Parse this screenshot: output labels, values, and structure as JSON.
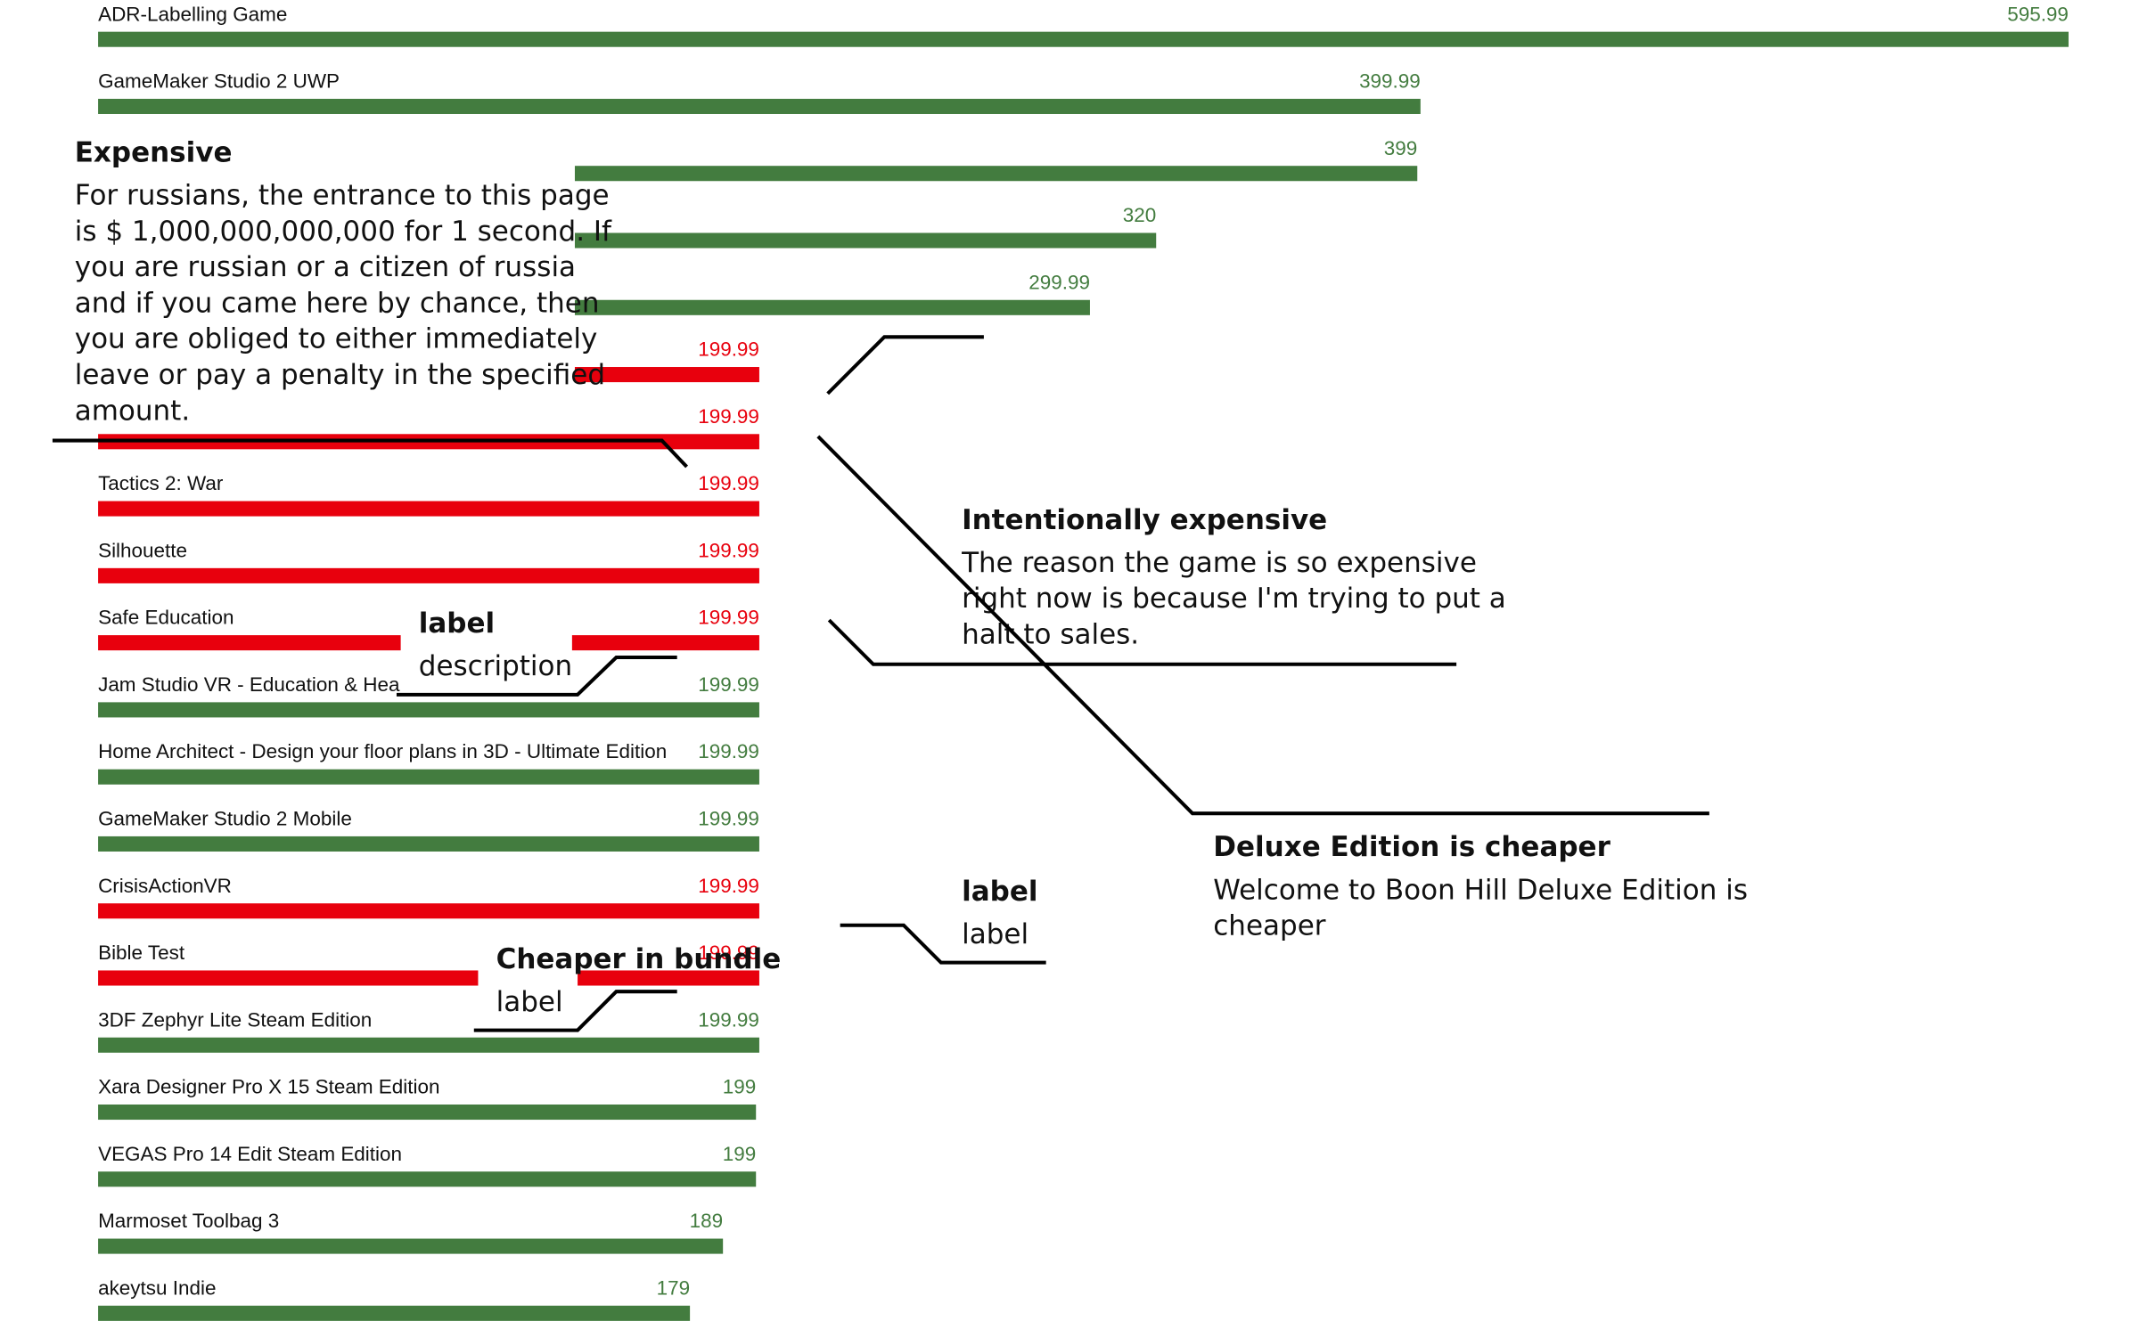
{
  "chart_data": {
    "type": "bar",
    "orientation": "horizontal",
    "colors": {
      "normal": "#437c3f",
      "highlight": "#e8000d"
    },
    "items": [
      {
        "label": "ADR-Labelling Game",
        "value": 595.99,
        "value_text": "595.99",
        "highlight": false
      },
      {
        "label": "GameMaker Studio 2 UWP",
        "value": 399.99,
        "value_text": "399.99",
        "highlight": false
      },
      {
        "label": "",
        "value": 399,
        "value_text": "399",
        "highlight": false
      },
      {
        "label": "",
        "value": 320,
        "value_text": "320",
        "highlight": false
      },
      {
        "label": "",
        "value": 299.99,
        "value_text": "299.99",
        "highlight": false
      },
      {
        "label": "",
        "value": 199.99,
        "value_text": "199.99",
        "highlight": true
      },
      {
        "label": "",
        "value": 199.99,
        "value_text": "199.99",
        "highlight": true
      },
      {
        "label": "Tactics 2: War",
        "value": 199.99,
        "value_text": "199.99",
        "highlight": true
      },
      {
        "label": "Silhouette",
        "value": 199.99,
        "value_text": "199.99",
        "highlight": true
      },
      {
        "label": "Safe Education",
        "value": 199.99,
        "value_text": "199.99",
        "highlight": true
      },
      {
        "label": "Jam Studio VR - Education & Healt",
        "value": 199.99,
        "value_text": "199.99",
        "highlight": false
      },
      {
        "label": "Home Architect - Design your floor plans in 3D - Ultimate Edition",
        "value": 199.99,
        "value_text": "199.99",
        "highlight": false
      },
      {
        "label": "GameMaker Studio 2 Mobile",
        "value": 199.99,
        "value_text": "199.99",
        "highlight": false
      },
      {
        "label": "CrisisActionVR",
        "value": 199.99,
        "value_text": "199.99",
        "highlight": true
      },
      {
        "label": "Bible Test",
        "value": 199.99,
        "value_text": "199.99",
        "highlight": true
      },
      {
        "label": "3DF Zephyr Lite Steam Edition",
        "value": 199.99,
        "value_text": "199.99",
        "highlight": false
      },
      {
        "label": "Xara Designer Pro X 15 Steam Edition",
        "value": 199,
        "value_text": "199",
        "highlight": false
      },
      {
        "label": "VEGAS Pro 14 Edit Steam Edition",
        "value": 199,
        "value_text": "199",
        "highlight": false
      },
      {
        "label": "Marmoset Toolbag 3",
        "value": 189,
        "value_text": "189",
        "highlight": false
      },
      {
        "label": "akeytsu Indie",
        "value": 179,
        "value_text": "179",
        "highlight": false
      }
    ],
    "xlim": [
      0,
      595.99
    ],
    "annotations": {
      "expensive": {
        "title": "Expensive",
        "lines": [
          "For russians, the entrance to this page",
          "is $ 1,000,000,000,000 for 1 second. If",
          "you are russian or a citizen of russia",
          "and if you came here by chance, then",
          "you are obliged to either immediately",
          "leave or pay a penalty in the specified",
          "amount."
        ]
      },
      "intentional": {
        "title": "Intentionally expensive",
        "lines": [
          "The reason the game is so expensive",
          "right now is because I'm trying to put a",
          "halt to sales."
        ]
      },
      "deluxe": {
        "title": "Deluxe Edition is cheaper",
        "lines": [
          "Welcome to Boon Hill Deluxe Edition is",
          "cheaper"
        ]
      },
      "label_small": {
        "title": "label",
        "body": "description"
      },
      "label_right": {
        "title": "label",
        "body": "label"
      },
      "bundle": {
        "title": "Cheaper in bundle",
        "body": "label"
      }
    }
  }
}
